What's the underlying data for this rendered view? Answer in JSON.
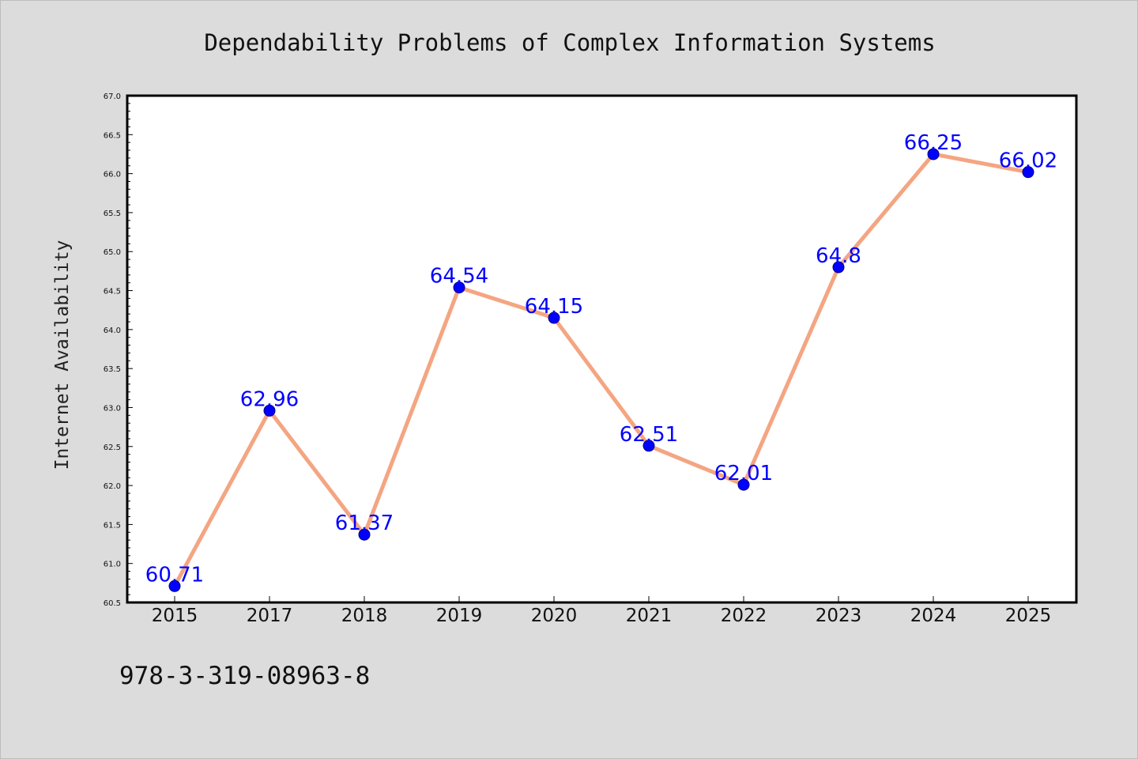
{
  "colors": {
    "figure_background": "#dcdcdc",
    "plot_background": "#ffffff",
    "line": "#f4a582",
    "marker_fill": "#0000ff",
    "marker_edge": "#000080",
    "data_label": "#0000ff",
    "axis": "#000000"
  },
  "footnote": "978-3-319-08963-8",
  "chart_data": {
    "type": "line",
    "title": "Dependability Problems of Complex Information Systems",
    "xlabel": "",
    "ylabel": "Internet Availability",
    "categories": [
      "2015",
      "2017",
      "2018",
      "2019",
      "2020",
      "2021",
      "2022",
      "2023",
      "2024",
      "2025"
    ],
    "series": [
      {
        "values": [
          60.71,
          62.96,
          61.37,
          64.54,
          64.15,
          62.51,
          62.01,
          64.8,
          66.25,
          66.02
        ],
        "data_labels": [
          "60.71",
          "62.96",
          "61.37",
          "64.54",
          "64.15",
          "62.51",
          "62.01",
          "64.8",
          "66.25",
          "66.02"
        ]
      }
    ],
    "ylim": [
      60.5,
      67.0
    ],
    "yticks": [
      "60.5",
      "61.0",
      "61.5",
      "62.0",
      "62.5",
      "63.0",
      "63.5",
      "64.0",
      "64.5",
      "65.0",
      "65.5",
      "66.0",
      "66.5",
      "67.0"
    ],
    "grid": false,
    "legend": "none"
  }
}
